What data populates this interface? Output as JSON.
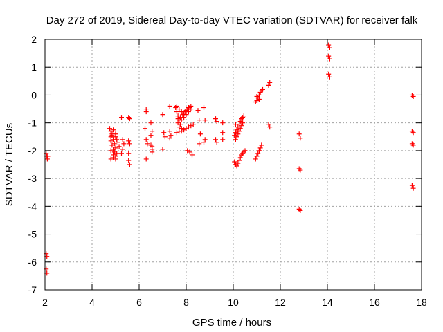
{
  "chart_data": {
    "type": "scatter",
    "title": "Day 272 of 2019, Sidereal Day-to-day VTEC variation (SDTVAR) for receiver falk",
    "xlabel": "GPS time / hours",
    "ylabel": "SDTVAR / TECUs",
    "xlim": [
      2,
      18
    ],
    "ylim": [
      -7,
      2
    ],
    "xticks": [
      2,
      4,
      6,
      8,
      10,
      12,
      14,
      16,
      18
    ],
    "yticks": [
      -7,
      -6,
      -5,
      -4,
      -3,
      -2,
      -1,
      0,
      1,
      2
    ],
    "grid": true,
    "marker": "plus",
    "color": "#ff0000",
    "series": [
      {
        "points": [
          [
            2.05,
            -2.1
          ],
          [
            2.08,
            -2.2
          ],
          [
            2.1,
            -2.3
          ],
          [
            2.12,
            -2.2
          ],
          [
            2.05,
            -5.7
          ],
          [
            2.08,
            -5.8
          ],
          [
            2.05,
            -6.25
          ],
          [
            2.08,
            -6.4
          ],
          [
            4.75,
            -1.2
          ],
          [
            4.8,
            -1.3
          ],
          [
            4.85,
            -1.45
          ],
          [
            4.9,
            -1.6
          ],
          [
            4.95,
            -1.75
          ],
          [
            5.0,
            -1.9
          ],
          [
            5.05,
            -2.1
          ],
          [
            4.8,
            -1.65
          ],
          [
            4.85,
            -1.8
          ],
          [
            4.9,
            -1.95
          ],
          [
            4.95,
            -2.05
          ],
          [
            5.0,
            -2.2
          ],
          [
            4.8,
            -2.3
          ],
          [
            4.9,
            -2.25
          ],
          [
            5.0,
            -2.3
          ],
          [
            4.8,
            -1.5
          ],
          [
            4.85,
            -1.4
          ],
          [
            4.9,
            -1.25
          ],
          [
            5.0,
            -1.5
          ],
          [
            5.05,
            -1.6
          ],
          [
            5.1,
            -1.7
          ],
          [
            5.15,
            -1.85
          ],
          [
            4.8,
            -2.0
          ],
          [
            4.9,
            -2.15
          ],
          [
            5.0,
            -1.4
          ],
          [
            5.25,
            -0.8
          ],
          [
            5.3,
            -1.6
          ],
          [
            5.35,
            -1.75
          ],
          [
            5.3,
            -1.95
          ],
          [
            5.25,
            -2.1
          ],
          [
            5.55,
            -0.8
          ],
          [
            5.6,
            -0.85
          ],
          [
            5.55,
            -1.65
          ],
          [
            5.6,
            -1.75
          ],
          [
            5.55,
            -2.35
          ],
          [
            5.6,
            -2.5
          ],
          [
            5.55,
            -2.1
          ],
          [
            6.3,
            -0.5
          ],
          [
            6.3,
            -0.6
          ],
          [
            6.25,
            -1.2
          ],
          [
            6.3,
            -1.6
          ],
          [
            6.35,
            -1.75
          ],
          [
            6.3,
            -2.3
          ],
          [
            6.5,
            -1.0
          ],
          [
            6.55,
            -1.3
          ],
          [
            6.5,
            -1.45
          ],
          [
            6.55,
            -1.85
          ],
          [
            6.55,
            -1.95
          ],
          [
            6.55,
            -2.05
          ],
          [
            6.5,
            -1.8
          ],
          [
            7.0,
            -0.7
          ],
          [
            7.05,
            -1.35
          ],
          [
            7.1,
            -1.5
          ],
          [
            7.0,
            -1.95
          ],
          [
            7.3,
            -0.4
          ],
          [
            7.3,
            -1.3
          ],
          [
            7.35,
            -1.45
          ],
          [
            7.3,
            -1.55
          ],
          [
            7.55,
            -0.45
          ],
          [
            7.6,
            -0.6
          ],
          [
            7.65,
            -0.75
          ],
          [
            7.7,
            -0.9
          ],
          [
            7.75,
            -1.05
          ],
          [
            7.8,
            -1.2
          ],
          [
            7.6,
            -0.4
          ],
          [
            7.7,
            -0.5
          ],
          [
            7.8,
            -0.6
          ],
          [
            7.9,
            -0.65
          ],
          [
            8.0,
            -0.55
          ],
          [
            8.1,
            -0.45
          ],
          [
            8.2,
            -0.4
          ],
          [
            7.65,
            -0.85
          ],
          [
            7.75,
            -0.8
          ],
          [
            7.85,
            -0.7
          ],
          [
            7.95,
            -0.6
          ],
          [
            8.05,
            -0.5
          ],
          [
            8.15,
            -0.45
          ],
          [
            7.65,
            -1.0
          ],
          [
            7.7,
            -1.15
          ],
          [
            7.8,
            -1.3
          ],
          [
            7.9,
            -1.25
          ],
          [
            8.0,
            -1.2
          ],
          [
            8.1,
            -1.15
          ],
          [
            8.2,
            -1.1
          ],
          [
            8.3,
            -1.05
          ],
          [
            7.6,
            -1.35
          ],
          [
            7.7,
            -1.3
          ],
          [
            7.8,
            -1.2
          ],
          [
            8.05,
            -2.0
          ],
          [
            8.15,
            -2.05
          ],
          [
            8.25,
            -2.15
          ],
          [
            7.8,
            -0.9
          ],
          [
            7.9,
            -0.8
          ],
          [
            8.0,
            -0.7
          ],
          [
            8.1,
            -0.6
          ],
          [
            8.2,
            -0.5
          ],
          [
            8.5,
            -0.55
          ],
          [
            8.55,
            -0.9
          ],
          [
            8.6,
            -1.4
          ],
          [
            8.55,
            -1.75
          ],
          [
            8.75,
            -0.45
          ],
          [
            8.8,
            -0.9
          ],
          [
            8.8,
            -1.6
          ],
          [
            8.75,
            -1.7
          ],
          [
            9.25,
            -0.85
          ],
          [
            9.3,
            -0.95
          ],
          [
            9.25,
            -1.6
          ],
          [
            9.3,
            -1.7
          ],
          [
            9.55,
            -1.0
          ],
          [
            9.55,
            -1.35
          ],
          [
            9.55,
            -1.6
          ],
          [
            10.05,
            -2.4
          ],
          [
            10.1,
            -2.5
          ],
          [
            10.15,
            -2.55
          ],
          [
            10.2,
            -2.45
          ],
          [
            10.25,
            -2.35
          ],
          [
            10.3,
            -2.25
          ],
          [
            10.35,
            -2.15
          ],
          [
            10.4,
            -2.1
          ],
          [
            10.45,
            -2.05
          ],
          [
            10.5,
            -2.0
          ],
          [
            10.05,
            -1.45
          ],
          [
            10.1,
            -1.35
          ],
          [
            10.15,
            -1.25
          ],
          [
            10.2,
            -1.15
          ],
          [
            10.25,
            -1.05
          ],
          [
            10.3,
            -0.95
          ],
          [
            10.35,
            -0.85
          ],
          [
            10.4,
            -0.8
          ],
          [
            10.45,
            -0.75
          ],
          [
            10.1,
            -1.6
          ],
          [
            10.15,
            -1.5
          ],
          [
            10.2,
            -1.4
          ],
          [
            10.25,
            -1.3
          ],
          [
            10.3,
            -1.2
          ],
          [
            10.35,
            -1.1
          ],
          [
            10.4,
            -1.0
          ],
          [
            10.1,
            -1.05
          ],
          [
            10.2,
            -1.3
          ],
          [
            10.95,
            -2.3
          ],
          [
            11.0,
            -2.2
          ],
          [
            11.05,
            -2.1
          ],
          [
            11.1,
            -2.0
          ],
          [
            11.15,
            -1.9
          ],
          [
            11.2,
            -1.8
          ],
          [
            10.95,
            -0.25
          ],
          [
            11.0,
            -0.2
          ],
          [
            11.05,
            -0.1
          ],
          [
            11.1,
            0.0
          ],
          [
            11.15,
            0.1
          ],
          [
            11.2,
            0.15
          ],
          [
            11.25,
            0.2
          ],
          [
            11.0,
            -0.05
          ],
          [
            11.1,
            -0.15
          ],
          [
            11.5,
            0.35
          ],
          [
            11.55,
            0.45
          ],
          [
            11.5,
            -1.05
          ],
          [
            11.55,
            -1.15
          ],
          [
            12.8,
            -1.4
          ],
          [
            12.85,
            -1.55
          ],
          [
            12.8,
            -2.65
          ],
          [
            12.85,
            -2.7
          ],
          [
            12.8,
            -4.1
          ],
          [
            12.85,
            -4.15
          ],
          [
            14.05,
            1.8
          ],
          [
            14.1,
            1.7
          ],
          [
            14.05,
            1.4
          ],
          [
            14.1,
            1.3
          ],
          [
            14.05,
            0.75
          ],
          [
            14.1,
            0.65
          ],
          [
            17.6,
            0.0
          ],
          [
            17.65,
            -0.05
          ],
          [
            17.6,
            -1.3
          ],
          [
            17.65,
            -1.35
          ],
          [
            17.6,
            -1.75
          ],
          [
            17.65,
            -1.8
          ],
          [
            17.6,
            -3.25
          ],
          [
            17.65,
            -3.35
          ]
        ]
      }
    ]
  }
}
